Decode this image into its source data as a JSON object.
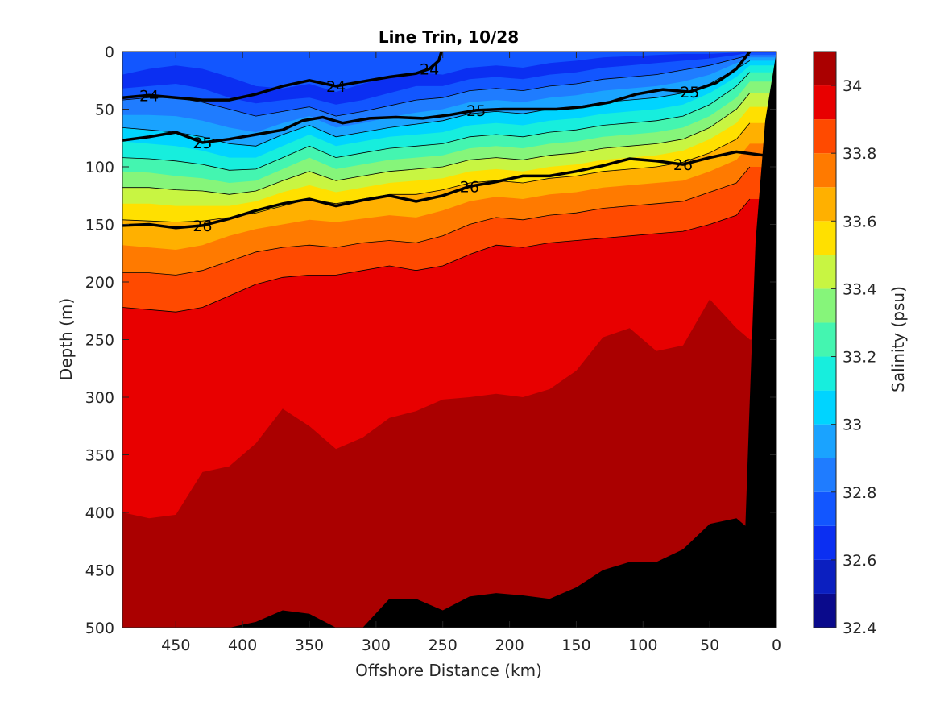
{
  "chart_data": {
    "type": "heatmap",
    "title": "Line Trin, 10/28",
    "xlabel": "Offshore Distance (km)",
    "ylabel": "Depth (m)",
    "xlim": [
      490,
      0
    ],
    "ylim": [
      0,
      500
    ],
    "x_reversed": true,
    "y_reversed": true,
    "x_ticks": [
      450,
      400,
      350,
      300,
      250,
      200,
      150,
      100,
      50,
      0
    ],
    "y_ticks": [
      0,
      50,
      100,
      150,
      200,
      250,
      300,
      350,
      400,
      450,
      500
    ],
    "colorbar": {
      "label": "Salinity (psu)",
      "range": [
        32.4,
        34.1
      ],
      "ticks": [
        32.4,
        32.6,
        32.8,
        33,
        33.2,
        33.4,
        33.6,
        33.8,
        34
      ],
      "levels": [
        32.4,
        32.5,
        32.6,
        32.7,
        32.8,
        32.9,
        33.0,
        33.1,
        33.2,
        33.3,
        33.4,
        33.5,
        33.6,
        33.7,
        33.8,
        33.9,
        34.0,
        34.1
      ],
      "colors": [
        "#0a0a8c",
        "#0b1fc0",
        "#0b2ff2",
        "#1256ff",
        "#1f7cff",
        "#1aa3ff",
        "#00d4ff",
        "#17eedd",
        "#44f5b0",
        "#86f57a",
        "#c8f542",
        "#ffe000",
        "#ffb000",
        "#ff7a00",
        "#ff4a00",
        "#e80000",
        "#aa0000"
      ]
    },
    "salinity_bands": {
      "x": [
        490,
        470,
        450,
        430,
        410,
        390,
        370,
        350,
        330,
        310,
        290,
        270,
        250,
        230,
        210,
        190,
        170,
        150,
        130,
        110,
        90,
        70,
        50,
        30,
        20
      ],
      "boundaries": [
        {
          "level": 32.6,
          "depth": [
            20,
            15,
            12,
            15,
            22,
            30,
            32,
            28,
            35,
            28,
            22,
            18,
            20,
            14,
            12,
            14,
            10,
            8,
            5,
            4,
            3,
            2,
            2,
            1,
            0
          ]
        },
        {
          "level": 32.7,
          "depth": [
            32,
            30,
            28,
            32,
            40,
            45,
            42,
            40,
            46,
            42,
            36,
            30,
            30,
            24,
            22,
            24,
            20,
            18,
            14,
            12,
            10,
            8,
            6,
            3,
            1
          ]
        },
        {
          "level": 32.8,
          "depth": [
            42,
            40,
            40,
            44,
            50,
            56,
            52,
            48,
            56,
            52,
            47,
            42,
            40,
            34,
            32,
            34,
            30,
            28,
            24,
            22,
            20,
            16,
            12,
            6,
            3
          ]
        },
        {
          "level": 32.9,
          "depth": [
            55,
            55,
            56,
            60,
            66,
            70,
            62,
            56,
            66,
            62,
            57,
            53,
            50,
            44,
            42,
            44,
            40,
            38,
            34,
            32,
            30,
            26,
            20,
            10,
            5
          ]
        },
        {
          "level": 33.0,
          "depth": [
            66,
            68,
            70,
            74,
            80,
            82,
            72,
            64,
            74,
            70,
            66,
            63,
            60,
            54,
            52,
            54,
            50,
            48,
            44,
            42,
            40,
            36,
            28,
            15,
            8
          ]
        },
        {
          "level": 33.1,
          "depth": [
            78,
            80,
            82,
            86,
            92,
            92,
            82,
            72,
            82,
            78,
            74,
            72,
            70,
            64,
            62,
            64,
            60,
            58,
            54,
            52,
            50,
            46,
            36,
            22,
            12
          ]
        },
        {
          "level": 33.2,
          "depth": [
            92,
            93,
            95,
            98,
            103,
            102,
            92,
            82,
            92,
            88,
            84,
            82,
            80,
            74,
            72,
            74,
            70,
            68,
            64,
            62,
            60,
            56,
            46,
            30,
            18
          ]
        },
        {
          "level": 33.3,
          "depth": [
            104,
            105,
            108,
            110,
            114,
            112,
            102,
            92,
            102,
            98,
            94,
            92,
            90,
            84,
            82,
            84,
            80,
            78,
            74,
            72,
            70,
            66,
            56,
            40,
            26
          ]
        },
        {
          "level": 33.4,
          "depth": [
            118,
            118,
            120,
            121,
            124,
            121,
            112,
            104,
            112,
            108,
            104,
            102,
            100,
            94,
            92,
            94,
            90,
            88,
            84,
            82,
            80,
            76,
            66,
            50,
            36
          ]
        },
        {
          "level": 33.5,
          "depth": [
            132,
            132,
            134,
            134,
            134,
            130,
            122,
            116,
            122,
            118,
            114,
            112,
            110,
            104,
            102,
            104,
            100,
            98,
            94,
            92,
            90,
            86,
            76,
            62,
            48
          ]
        },
        {
          "level": 33.6,
          "depth": [
            146,
            147,
            148,
            147,
            144,
            140,
            134,
            128,
            132,
            128,
            124,
            124,
            120,
            114,
            112,
            114,
            110,
            108,
            104,
            102,
            100,
            96,
            88,
            76,
            62
          ]
        },
        {
          "level": 33.7,
          "depth": [
            168,
            170,
            172,
            168,
            160,
            154,
            150,
            146,
            148,
            145,
            142,
            144,
            138,
            130,
            126,
            128,
            124,
            122,
            118,
            116,
            114,
            112,
            104,
            94,
            80
          ]
        },
        {
          "level": 33.8,
          "depth": [
            192,
            192,
            194,
            190,
            182,
            174,
            170,
            168,
            170,
            166,
            164,
            166,
            160,
            150,
            144,
            146,
            142,
            140,
            136,
            134,
            132,
            130,
            122,
            114,
            100
          ]
        },
        {
          "level": 33.9,
          "depth": [
            222,
            224,
            226,
            222,
            212,
            202,
            196,
            194,
            194,
            190,
            186,
            190,
            186,
            176,
            168,
            170,
            166,
            164,
            162,
            160,
            158,
            156,
            150,
            142,
            128
          ]
        },
        {
          "level": 34.0,
          "depth": [
            400,
            405,
            402,
            365,
            360,
            340,
            310,
            325,
            345,
            335,
            318,
            312,
            302,
            300,
            297,
            300,
            293,
            277,
            248,
            240,
            260,
            255,
            215,
            240,
            250
          ]
        },
        {
          "level": 34.1,
          "depth": [
            500,
            500,
            500,
            500,
            500,
            495,
            485,
            488,
            500,
            500,
            475,
            475,
            485,
            473,
            470,
            472,
            475,
            465,
            450,
            443,
            443,
            432,
            410,
            405,
            415
          ]
        }
      ]
    },
    "density_contours": [
      {
        "label": "24",
        "bold": true,
        "x": [
          490,
          470,
          450,
          430,
          410,
          390,
          370,
          350,
          330,
          310,
          290,
          270,
          260,
          253,
          251
        ],
        "depth": [
          40,
          38,
          40,
          42,
          42,
          37,
          30,
          25,
          30,
          26,
          22,
          19,
          15,
          8,
          0
        ]
      },
      {
        "label": "25",
        "bold": true,
        "x": [
          490,
          470,
          450,
          430,
          410,
          390,
          370,
          355,
          340,
          325,
          305,
          285,
          265,
          245,
          225,
          205,
          185,
          165,
          145,
          125,
          105,
          85,
          65,
          45,
          30,
          20
        ],
        "depth": [
          77,
          74,
          70,
          79,
          76,
          72,
          68,
          60,
          57,
          62,
          58,
          57,
          58,
          55,
          51,
          50,
          50,
          50,
          48,
          44,
          37,
          33,
          35,
          27,
          15,
          0
        ]
      },
      {
        "label": "26",
        "bold": true,
        "x": [
          490,
          470,
          450,
          430,
          410,
          390,
          370,
          350,
          330,
          310,
          290,
          270,
          250,
          230,
          210,
          190,
          170,
          150,
          130,
          110,
          90,
          70,
          50,
          30,
          10
        ],
        "depth": [
          151,
          150,
          153,
          151,
          145,
          138,
          132,
          128,
          134,
          129,
          125,
          130,
          125,
          117,
          113,
          108,
          108,
          104,
          99,
          93,
          95,
          98,
          92,
          87,
          90
        ]
      }
    ]
  }
}
